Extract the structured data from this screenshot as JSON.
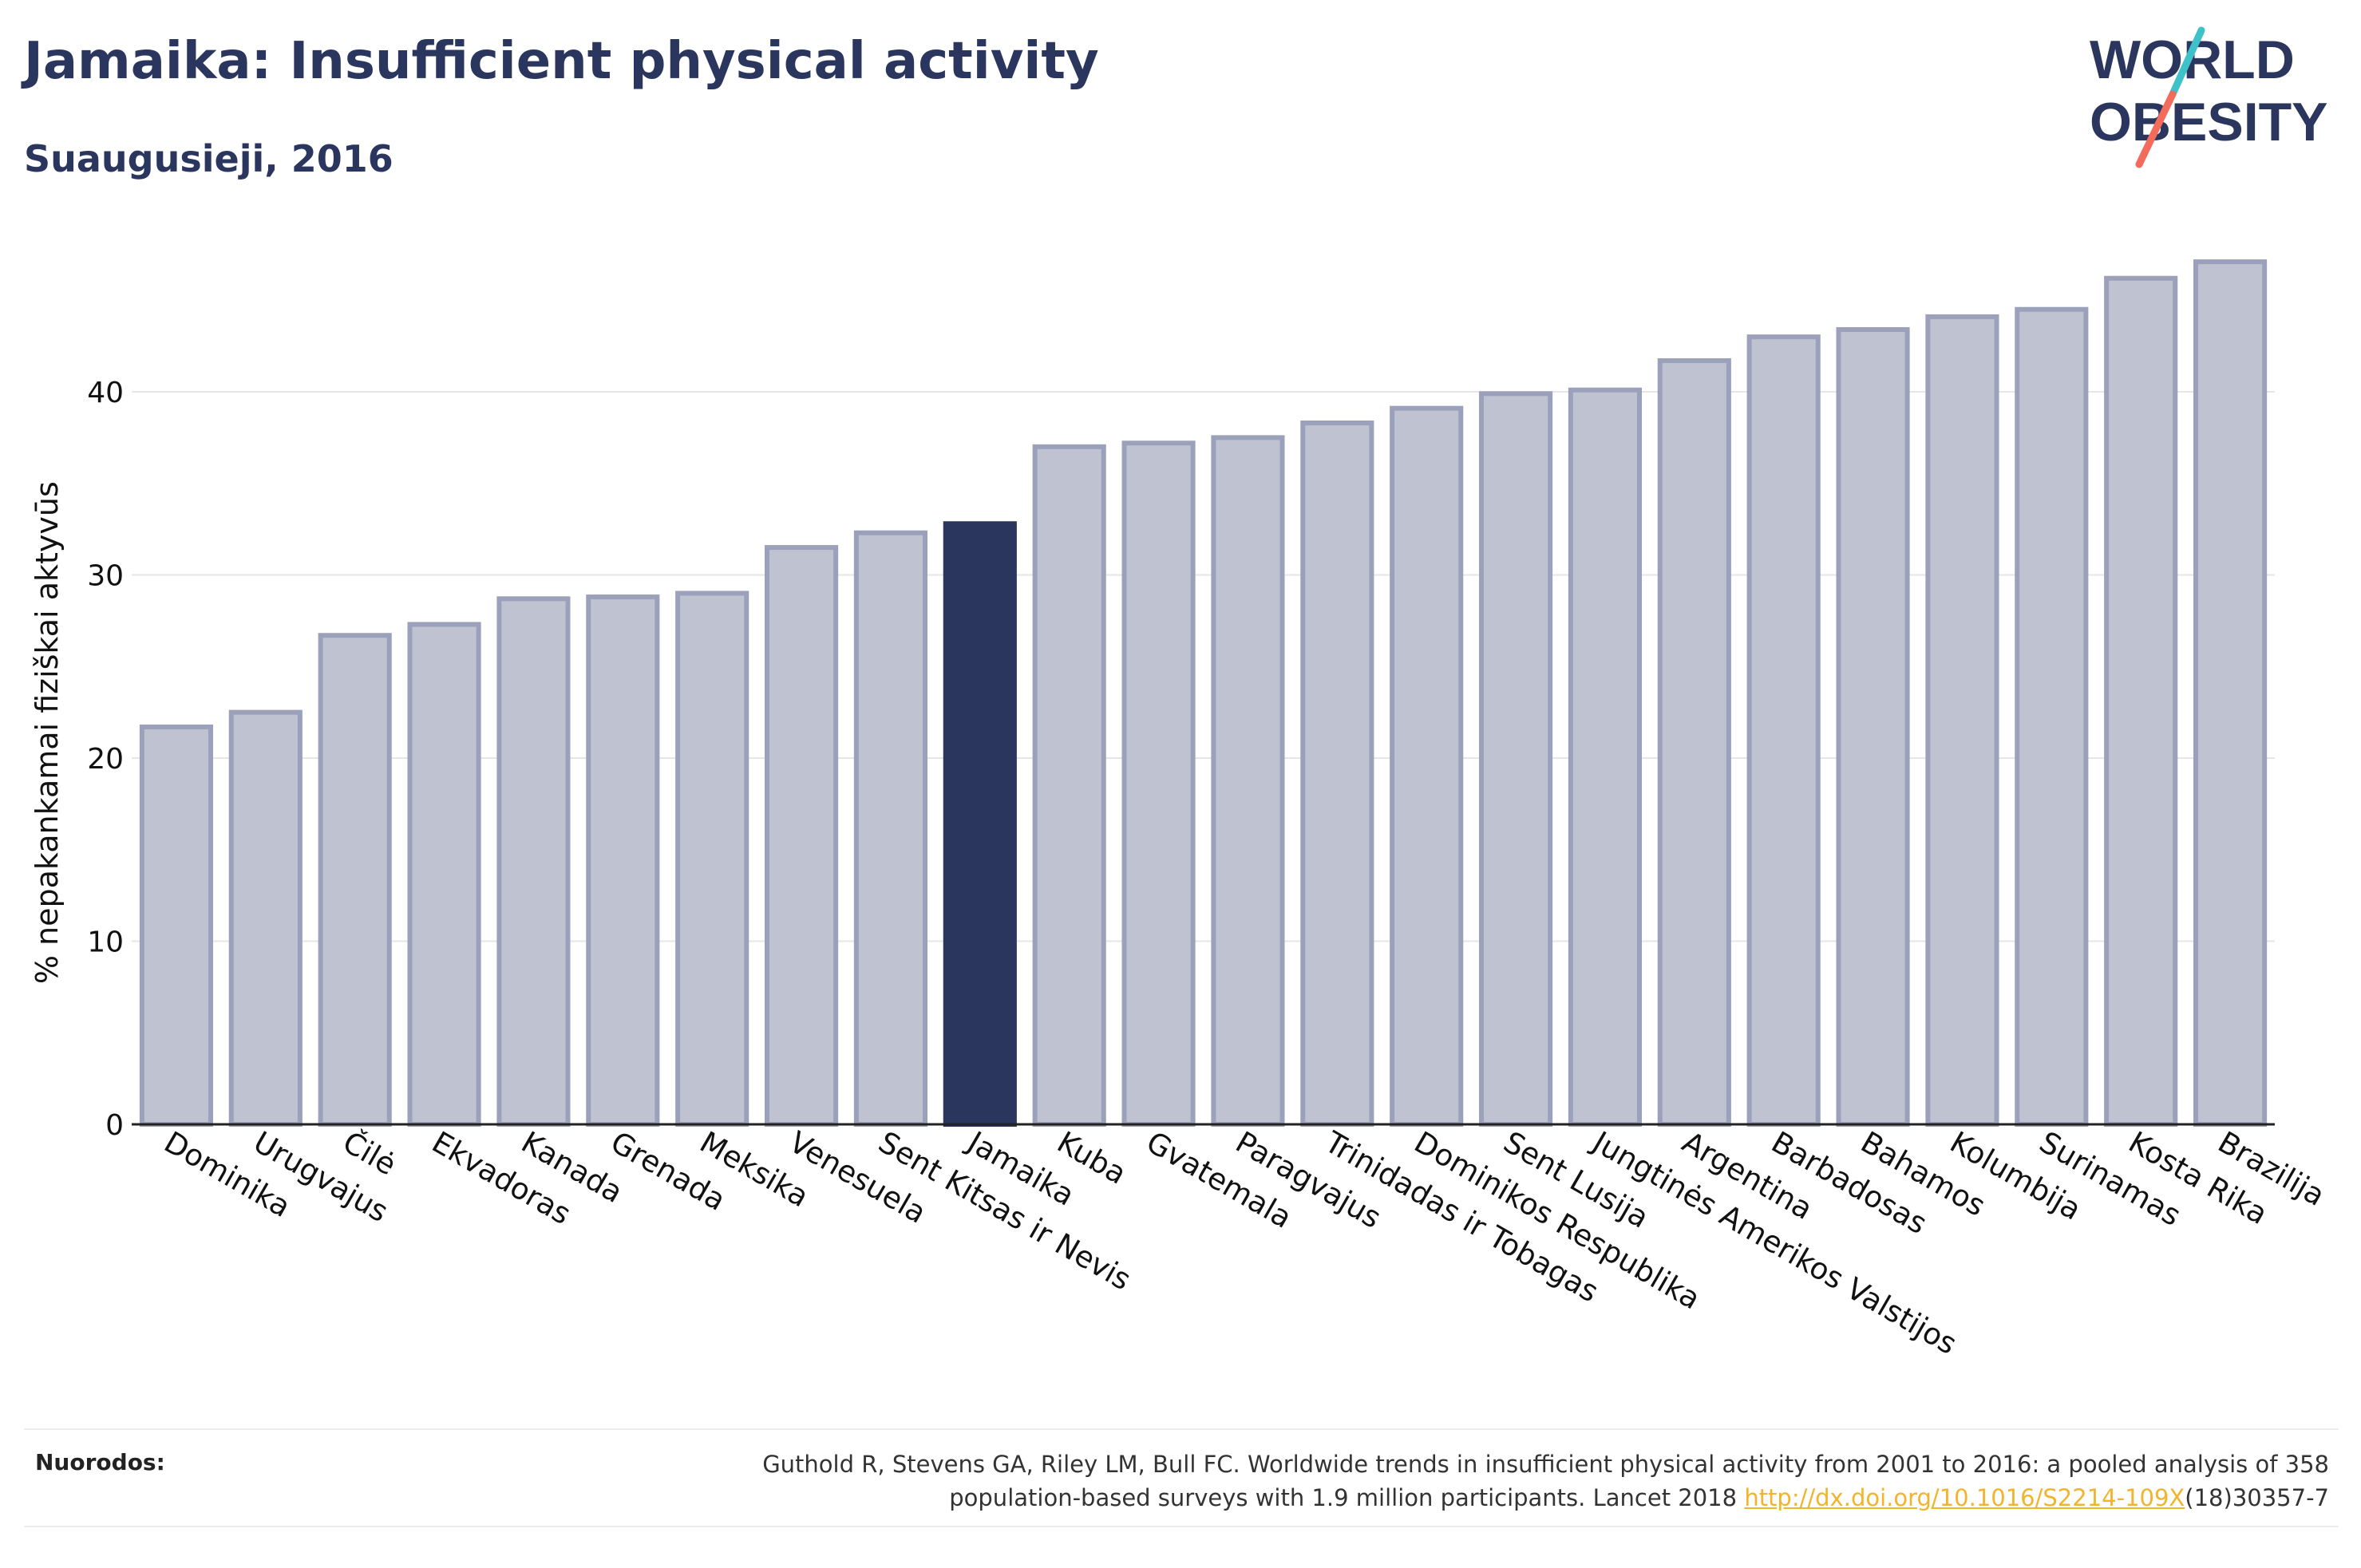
{
  "header": {
    "title": "Jamaika: Insufficient physical activity",
    "subtitle": "Suaugusieji, 2016"
  },
  "logo": {
    "line1": "WORLD",
    "line2": "OBESITY"
  },
  "colors": {
    "highlight": "#2b365f",
    "bar_fill": "#bfc2d0",
    "bar_stroke": "#9ba1ba",
    "grid": "#e6e6e6",
    "text": "#2b365f",
    "logo_teal": "#3fc1c9",
    "logo_coral": "#f26b5b",
    "link": "#f2b42d"
  },
  "chart_data": {
    "type": "bar",
    "title": "Jamaika: Insufficient physical activity",
    "subtitle": "Suaugusieji, 2016",
    "ylabel": "% nepakankamai fiziškai aktyvūs",
    "xlabel": "",
    "ylim": [
      0,
      48
    ],
    "yticks": [
      0,
      10,
      20,
      30,
      40
    ],
    "grid": true,
    "highlight": "Jamaika",
    "categories": [
      "Dominika",
      "Urugvajus",
      "Čilė",
      "Ekvadoras",
      "Kanada",
      "Grenada",
      "Meksika",
      "Venesuela",
      "Sent Kitsas ir Nevis",
      "Jamaika",
      "Kuba",
      "Gvatemala",
      "Paragvajus",
      "Trinidadas ir Tobagas",
      "Dominikos Respublika",
      "Sent Lusija",
      "Jungtinės Amerikos Valstijos",
      "Argentina",
      "Barbadosas",
      "Bahamos",
      "Kolumbija",
      "Surinamas",
      "Kosta Rika",
      "Brazilija"
    ],
    "values": [
      21.7,
      22.5,
      26.7,
      27.3,
      28.7,
      28.8,
      29.0,
      31.5,
      32.3,
      32.8,
      37.0,
      37.2,
      37.5,
      38.3,
      39.1,
      39.9,
      40.1,
      41.7,
      43.0,
      43.4,
      44.1,
      44.5,
      46.2,
      47.1
    ]
  },
  "footer": {
    "references_label": "Nuorodos:",
    "reference_line1": "Guthold R, Stevens GA, Riley LM, Bull FC. Worldwide trends in insufficient physical activity from 2001 to 2016: a pooled analysis of 358",
    "reference_line2_prefix": "population-based surveys with 1.9 million participants. Lancet 2018 ",
    "reference_link": "http://dx.doi.org/10.1016/S2214-109X",
    "reference_line2_suffix": "(18)30357-7"
  }
}
